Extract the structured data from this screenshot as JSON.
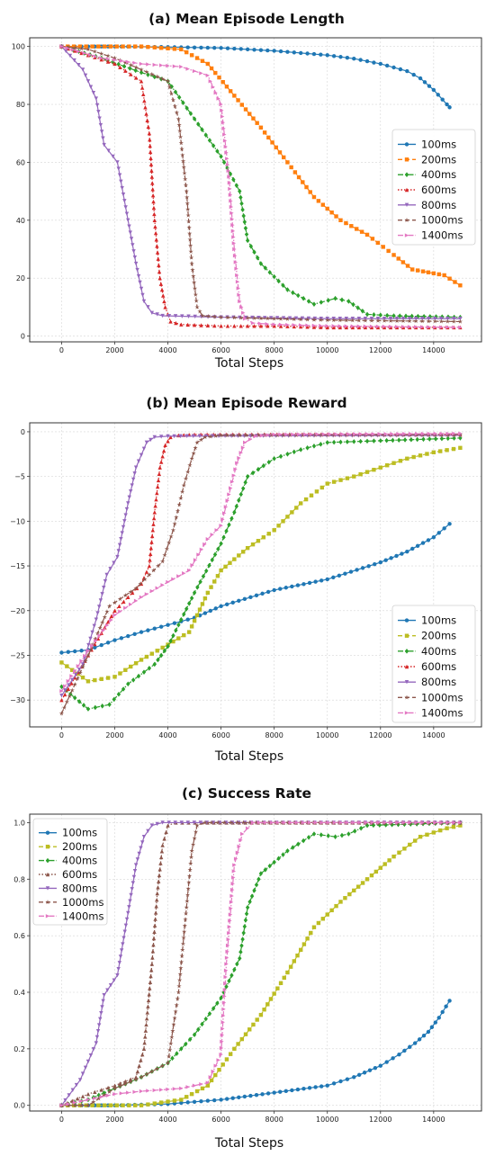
{
  "chart_data": [
    {
      "type": "line",
      "title": "(a) Mean Episode Length",
      "xlabel": "Total Steps",
      "ylabel": "",
      "xlim": [
        -1200,
        15800
      ],
      "ylim": [
        -2,
        103
      ],
      "xticks": [
        0,
        2000,
        4000,
        6000,
        8000,
        10000,
        12000,
        14000
      ],
      "yticks": [
        0,
        20,
        40,
        60,
        80,
        100
      ],
      "ytick_labels": [
        "0",
        "20",
        "40",
        "60",
        "80",
        "100"
      ],
      "grid": true,
      "legend_position": "center-right",
      "series": [
        {
          "name": "100ms",
          "color": "#1f77b4",
          "dash": "",
          "marker": "circle",
          "x": [
            0,
            2000,
            4000,
            6000,
            8000,
            10000,
            11000,
            12000,
            13000,
            13500,
            14000,
            14500,
            14600
          ],
          "y": [
            100,
            100,
            99.8,
            99.5,
            98.5,
            97,
            95.8,
            94,
            91.5,
            89,
            85,
            80,
            79
          ]
        },
        {
          "name": "200ms",
          "color": "#ff7f0e",
          "dash": "5 3",
          "marker": "square",
          "x": [
            0,
            3000,
            4500,
            5500,
            6500,
            7500,
            8500,
            9500,
            10500,
            11500,
            12500,
            13200,
            13800,
            14400,
            15000
          ],
          "y": [
            100,
            100,
            99,
            94,
            83,
            72,
            60,
            48,
            40,
            35,
            28,
            23,
            22,
            21,
            17.5
          ]
        },
        {
          "name": "400ms",
          "color": "#2ca02c",
          "dash": "6 2 1.5 2",
          "marker": "diamond",
          "x": [
            0,
            1500,
            3000,
            4000,
            5000,
            6000,
            6700,
            7000,
            7500,
            8500,
            9500,
            10300,
            10800,
            11500,
            12500,
            15000
          ],
          "y": [
            100,
            96,
            91,
            88,
            75,
            62,
            50,
            33,
            25,
            16,
            11,
            13,
            12,
            7.5,
            7,
            6.5
          ]
        },
        {
          "name": "600ms",
          "color": "#d62728",
          "dash": "1.5 2",
          "marker": "triangle-up",
          "x": [
            0,
            1000,
            2000,
            3000,
            3300,
            3500,
            3700,
            3900,
            4100,
            4500,
            6000,
            8000,
            10000,
            15000
          ],
          "y": [
            100,
            97,
            94,
            88,
            70,
            40,
            20,
            10,
            5,
            4,
            3.5,
            3.5,
            3,
            3
          ]
        },
        {
          "name": "800ms",
          "color": "#9467bd",
          "dash": "",
          "marker": "triangle-down",
          "x": [
            0,
            800,
            1300,
            1600,
            2100,
            2500,
            2800,
            3100,
            3400,
            3800,
            6000,
            10000,
            15000
          ],
          "y": [
            100,
            92,
            82,
            66,
            60,
            40,
            25,
            12,
            8,
            7,
            6.5,
            6,
            6
          ]
        },
        {
          "name": "1000ms",
          "color": "#8c564b",
          "dash": "5 3",
          "marker": "star",
          "x": [
            0,
            1000,
            2000,
            3000,
            4000,
            4400,
            4700,
            4900,
            5100,
            5300,
            6000,
            8000,
            10000,
            15000
          ],
          "y": [
            100,
            99,
            96,
            92,
            88,
            75,
            50,
            25,
            10,
            7,
            6.5,
            6,
            5.5,
            5
          ]
        },
        {
          "name": "1400ms",
          "color": "#e377c2",
          "dash": "6 2 1.5 2",
          "marker": "triangle-right",
          "x": [
            0,
            1500,
            3000,
            4500,
            5500,
            6000,
            6300,
            6500,
            6700,
            6900,
            7200,
            8000,
            10000,
            15000
          ],
          "y": [
            100,
            96,
            94,
            93,
            90,
            80,
            55,
            30,
            12,
            6,
            4.5,
            4,
            3.5,
            3
          ]
        }
      ]
    },
    {
      "type": "line",
      "title": "(b) Mean Episode Reward",
      "xlabel": "Total Steps",
      "ylabel": "",
      "xlim": [
        -1200,
        15800
      ],
      "ylim": [
        -33,
        1
      ],
      "xticks": [
        0,
        2000,
        4000,
        6000,
        8000,
        10000,
        12000,
        14000
      ],
      "yticks": [
        0,
        -5,
        -10,
        -15,
        -20,
        -25,
        -30
      ],
      "ytick_labels": [
        "0",
        "−5",
        "−10",
        "−15",
        "−20",
        "−25",
        "−30"
      ],
      "grid": true,
      "legend_position": "lower-right",
      "series": [
        {
          "name": "100ms",
          "color": "#1f77b4",
          "dash": "",
          "marker": "circle",
          "x": [
            0,
            1000,
            2000,
            3000,
            4000,
            5000,
            6000,
            8000,
            10000,
            12000,
            13000,
            14000,
            14600
          ],
          "y": [
            -24.7,
            -24.4,
            -23.3,
            -22.4,
            -21.6,
            -20.8,
            -19.5,
            -17.7,
            -16.5,
            -14.6,
            -13.4,
            -11.8,
            -10.3
          ]
        },
        {
          "name": "200ms",
          "color": "#bcbd22",
          "dash": "5 3",
          "marker": "square",
          "x": [
            0,
            1000,
            2000,
            3000,
            4000,
            4800,
            5500,
            6000,
            7000,
            8000,
            9000,
            10000,
            11000,
            12000,
            13000,
            14000,
            15000
          ],
          "y": [
            -25.8,
            -27.9,
            -27.4,
            -25.5,
            -23.8,
            -22.4,
            -18,
            -15.5,
            -13,
            -11,
            -8,
            -5.8,
            -5,
            -4,
            -3,
            -2.3,
            -1.8
          ]
        },
        {
          "name": "400ms",
          "color": "#2ca02c",
          "dash": "6 2 1.5 2",
          "marker": "diamond",
          "x": [
            0,
            1000,
            1800,
            2500,
            3500,
            4000,
            5000,
            6000,
            6500,
            7000,
            8000,
            9000,
            10000,
            12000,
            15000
          ],
          "y": [
            -28.5,
            -31,
            -30.5,
            -28.2,
            -26,
            -24,
            -18,
            -12.5,
            -9,
            -5,
            -3,
            -2,
            -1.2,
            -1,
            -0.7
          ]
        },
        {
          "name": "600ms",
          "color": "#d62728",
          "dash": "1.5 2",
          "marker": "triangle-up",
          "x": [
            0,
            1000,
            2000,
            3000,
            3300,
            3500,
            3700,
            3900,
            4100,
            4400,
            5000,
            15000
          ],
          "y": [
            -30,
            -25,
            -20,
            -17,
            -15,
            -9,
            -4,
            -1.5,
            -0.6,
            -0.4,
            -0.3,
            -0.3
          ]
        },
        {
          "name": "800ms",
          "color": "#9467bd",
          "dash": "",
          "marker": "triangle-down",
          "x": [
            0,
            800,
            1300,
            1700,
            2100,
            2500,
            2800,
            3200,
            3500,
            4000,
            15000
          ],
          "y": [
            -29.5,
            -26,
            -21,
            -16,
            -14,
            -8,
            -4,
            -1.2,
            -0.6,
            -0.5,
            -0.4
          ]
        },
        {
          "name": "1000ms",
          "color": "#8c564b",
          "dash": "5 3",
          "marker": "star",
          "x": [
            0,
            1000,
            1800,
            2800,
            3800,
            4200,
            4600,
            4900,
            5100,
            5400,
            6000,
            15000
          ],
          "y": [
            -31.5,
            -25,
            -19.5,
            -17.5,
            -14.5,
            -11,
            -6,
            -3,
            -1.2,
            -0.6,
            -0.4,
            -0.3
          ]
        },
        {
          "name": "1400ms",
          "color": "#e377c2",
          "dash": "6 2 1.5 2",
          "marker": "triangle-right",
          "x": [
            0,
            1000,
            2000,
            3000,
            4000,
            4800,
            5500,
            6000,
            6300,
            6600,
            6900,
            7300,
            8000,
            15000
          ],
          "y": [
            -29,
            -24.5,
            -20.5,
            -18.5,
            -16.8,
            -15.5,
            -12,
            -10.5,
            -7,
            -3.5,
            -1.2,
            -0.5,
            -0.3,
            -0.2
          ]
        }
      ]
    },
    {
      "type": "line",
      "title": "(c) Success Rate",
      "xlabel": "Total Steps",
      "ylabel": "",
      "xlim": [
        -1200,
        15800
      ],
      "ylim": [
        -0.02,
        1.03
      ],
      "xticks": [
        0,
        2000,
        4000,
        6000,
        8000,
        10000,
        12000,
        14000
      ],
      "yticks": [
        0,
        0.2,
        0.4,
        0.6,
        0.8,
        1.0
      ],
      "ytick_labels": [
        "0.0",
        "0.2",
        "0.4",
        "0.6",
        "0.8",
        "1.0"
      ],
      "grid": true,
      "legend_position": "upper-left",
      "series": [
        {
          "name": "100ms",
          "color": "#1f77b4",
          "dash": "",
          "marker": "circle",
          "x": [
            0,
            2000,
            4000,
            6000,
            8000,
            10000,
            11000,
            12000,
            12700,
            13300,
            13800,
            14200,
            14600
          ],
          "y": [
            0,
            0,
            0.005,
            0.02,
            0.045,
            0.07,
            0.1,
            0.14,
            0.18,
            0.22,
            0.26,
            0.31,
            0.37
          ]
        },
        {
          "name": "200ms",
          "color": "#bcbd22",
          "dash": "5 3",
          "marker": "square",
          "x": [
            0,
            3000,
            4500,
            5500,
            6500,
            7500,
            8500,
            9500,
            10500,
            11500,
            12500,
            13500,
            14500,
            15000
          ],
          "y": [
            0,
            0,
            0.02,
            0.07,
            0.2,
            0.32,
            0.47,
            0.63,
            0.72,
            0.8,
            0.88,
            0.95,
            0.98,
            0.99
          ]
        },
        {
          "name": "400ms",
          "color": "#2ca02c",
          "dash": "6 2 1.5 2",
          "marker": "diamond",
          "x": [
            0,
            1000,
            2000,
            3000,
            4000,
            5000,
            6000,
            6700,
            7000,
            7500,
            8500,
            9500,
            10300,
            10800,
            11500,
            15000
          ],
          "y": [
            0,
            0.02,
            0.06,
            0.1,
            0.15,
            0.25,
            0.38,
            0.52,
            0.7,
            0.82,
            0.9,
            0.96,
            0.95,
            0.96,
            0.99,
            1.0
          ]
        },
        {
          "name": "600ms",
          "color": "#8c564b",
          "dash": "1.5 2",
          "marker": "triangle-up",
          "x": [
            0,
            1000,
            2000,
            2800,
            3100,
            3400,
            3600,
            3800,
            4000,
            4300,
            15000
          ],
          "y": [
            0,
            0.04,
            0.07,
            0.1,
            0.2,
            0.5,
            0.75,
            0.92,
            0.99,
            1.0,
            1.0
          ]
        },
        {
          "name": "800ms",
          "color": "#9467bd",
          "dash": "",
          "marker": "triangle-down",
          "x": [
            0,
            700,
            1300,
            1600,
            2100,
            2500,
            2800,
            3100,
            3400,
            3800,
            15000
          ],
          "y": [
            0,
            0.09,
            0.22,
            0.39,
            0.46,
            0.68,
            0.85,
            0.95,
            0.99,
            1.0,
            1.0
          ]
        },
        {
          "name": "1000ms",
          "color": "#8c564b",
          "dash": "5 3",
          "marker": "star",
          "x": [
            0,
            1000,
            2000,
            3000,
            4000,
            4400,
            4700,
            4900,
            5100,
            5400,
            15000
          ],
          "y": [
            0,
            0,
            0.06,
            0.1,
            0.15,
            0.4,
            0.7,
            0.9,
            0.99,
            1.0,
            1.0
          ]
        },
        {
          "name": "1400ms",
          "color": "#e377c2",
          "dash": "6 2 1.5 2",
          "marker": "triangle-right",
          "x": [
            0,
            1000,
            2000,
            3000,
            4500,
            5500,
            6000,
            6200,
            6500,
            6800,
            7200,
            15000
          ],
          "y": [
            0,
            0.02,
            0.04,
            0.05,
            0.06,
            0.08,
            0.18,
            0.5,
            0.85,
            0.96,
            1.0,
            1.0
          ]
        }
      ]
    }
  ]
}
